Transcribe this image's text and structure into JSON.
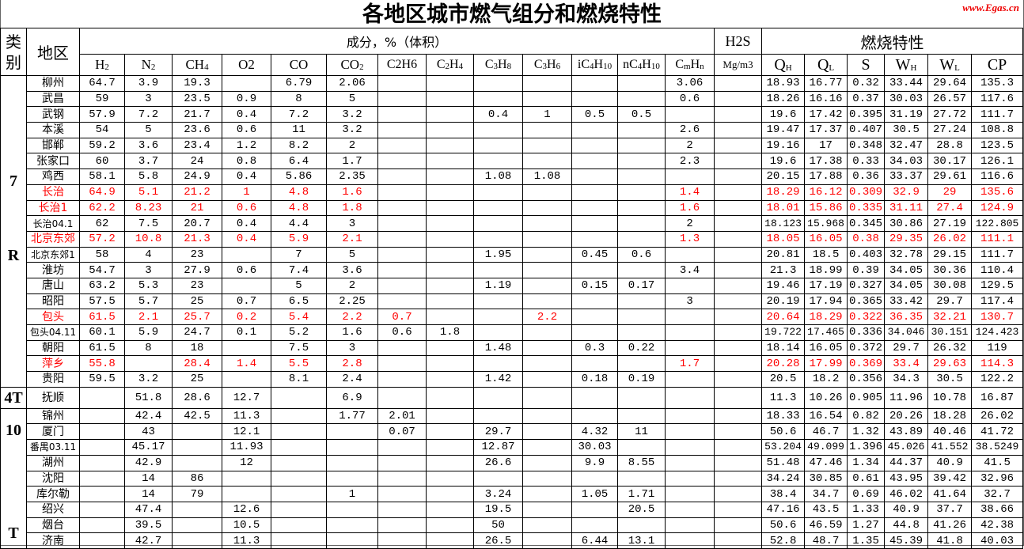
{
  "title": "各地区城市燃气组分和燃烧特性",
  "watermark": "www.Egas.cn",
  "header": {
    "category": "类别",
    "region": "地区",
    "composition": "成分，%（体积）",
    "h2s": "H2S",
    "h2s_unit": "Mg/m3",
    "combustion": "燃烧特性",
    "columns": [
      {
        "main": "H",
        "sub": "2"
      },
      {
        "main": "N",
        "sub": "2"
      },
      {
        "main": "CH",
        "sub": "4"
      },
      {
        "main": "O2",
        "sub": ""
      },
      {
        "main": "CO",
        "sub": ""
      },
      {
        "main": "CO",
        "sub": "2"
      },
      {
        "main": "C2H6",
        "sub": ""
      },
      {
        "main": "C",
        "sub": "2",
        "main2": "H",
        "sub2": "4"
      },
      {
        "main": "C",
        "sub": "3",
        "main2": "H",
        "sub2": "8"
      },
      {
        "main": "C",
        "sub": "3",
        "main2": "H",
        "sub2": "6"
      },
      {
        "main": "iC",
        "sub": "4",
        "main2": "H",
        "sub2": "10"
      },
      {
        "main": "nC",
        "sub": "4",
        "main2": "H",
        "sub2": "10"
      },
      {
        "main": "C",
        "sub": "m",
        "main2": "H",
        "sub2": "n"
      }
    ],
    "combustion_columns": [
      {
        "main": "Q",
        "sub": "H"
      },
      {
        "main": "Q",
        "sub": "L"
      },
      {
        "main": "S",
        "sub": ""
      },
      {
        "main": "W",
        "sub": "H"
      },
      {
        "main": "W",
        "sub": "L"
      },
      {
        "main": "CP",
        "sub": ""
      }
    ]
  },
  "colors": {
    "highlight": "#ff0000",
    "watermark": "#e00000"
  },
  "categories": [
    {
      "lines": [
        "7",
        "R"
      ],
      "rows": 20
    },
    {
      "lines": [
        "4T"
      ],
      "rows": 1
    },
    {
      "lines": [
        "10",
        "T"
      ],
      "rows": 9
    }
  ],
  "rows": [
    {
      "region": "柳州",
      "red": false,
      "values": [
        "64.7",
        "3.9",
        "19.3",
        "",
        "6.79",
        "2.06",
        "",
        "",
        "",
        "",
        "",
        "",
        "3.06",
        "",
        "18.93",
        "16.77",
        "0.32",
        "33.44",
        "29.64",
        "135.3"
      ]
    },
    {
      "region": "武昌",
      "red": false,
      "values": [
        "59",
        "3",
        "23.5",
        "0.9",
        "8",
        "5",
        "",
        "",
        "",
        "",
        "",
        "",
        "0.6",
        "",
        "18.26",
        "16.16",
        "0.37",
        "30.03",
        "26.57",
        "117.6"
      ]
    },
    {
      "region": "武钢",
      "red": false,
      "values": [
        "57.9",
        "7.2",
        "21.7",
        "0.4",
        "7.2",
        "3.2",
        "",
        "",
        "0.4",
        "1",
        "0.5",
        "0.5",
        "",
        "",
        "19.6",
        "17.42",
        "0.395",
        "31.19",
        "27.72",
        "111.7"
      ]
    },
    {
      "region": "本溪",
      "red": false,
      "values": [
        "54",
        "5",
        "23.6",
        "0.6",
        "11",
        "3.2",
        "",
        "",
        "",
        "",
        "",
        "",
        "2.6",
        "",
        "19.47",
        "17.37",
        "0.407",
        "30.5",
        "27.24",
        "108.8"
      ]
    },
    {
      "region": "邯郸",
      "red": false,
      "values": [
        "59.2",
        "3.6",
        "23.4",
        "1.2",
        "8.2",
        "2",
        "",
        "",
        "",
        "",
        "",
        "",
        "2",
        "",
        "19.16",
        "17",
        "0.348",
        "32.47",
        "28.8",
        "123.5"
      ]
    },
    {
      "region": "张家口",
      "red": false,
      "values": [
        "60",
        "3.7",
        "24",
        "0.8",
        "6.4",
        "1.7",
        "",
        "",
        "",
        "",
        "",
        "",
        "2.3",
        "",
        "19.6",
        "17.38",
        "0.33",
        "34.03",
        "30.17",
        "126.1"
      ]
    },
    {
      "region": "鸡西",
      "red": false,
      "values": [
        "58.1",
        "5.8",
        "24.9",
        "0.4",
        "5.86",
        "2.35",
        "",
        "",
        "1.08",
        "1.08",
        "",
        "",
        "",
        "",
        "20.15",
        "17.88",
        "0.36",
        "33.37",
        "29.61",
        "116.6"
      ]
    },
    {
      "region": "长治",
      "red": true,
      "values": [
        "64.9",
        "5.1",
        "21.2",
        "1",
        "4.8",
        "1.6",
        "",
        "",
        "",
        "",
        "",
        "",
        "1.4",
        "",
        "18.29",
        "16.12",
        "0.309",
        "32.9",
        "29",
        "135.6"
      ]
    },
    {
      "region": "长治1",
      "red": true,
      "values": [
        "62.2",
        "8.23",
        "21",
        "0.6",
        "4.8",
        "1.8",
        "",
        "",
        "",
        "",
        "",
        "",
        "1.6",
        "",
        "18.01",
        "15.86",
        "0.335",
        "31.11",
        "27.4",
        "124.9"
      ]
    },
    {
      "region": "长治04.1",
      "red": false,
      "values": [
        "62",
        "7.5",
        "20.7",
        "0.4",
        "4.4",
        "3",
        "",
        "",
        "",
        "",
        "",
        "",
        "2",
        "",
        "18.123",
        "15.968",
        "0.345",
        "30.86",
        "27.19",
        "122.805"
      ]
    },
    {
      "region": "北京东郊",
      "red": true,
      "values": [
        "57.2",
        "10.8",
        "21.3",
        "0.4",
        "5.9",
        "2.1",
        "",
        "",
        "",
        "",
        "",
        "",
        "1.3",
        "",
        "18.05",
        "16.05",
        "0.38",
        "29.35",
        "26.02",
        "111.1"
      ]
    },
    {
      "region": "北京东郊1",
      "red": false,
      "values": [
        "58",
        "4",
        "23",
        "",
        "7",
        "5",
        "",
        "",
        "1.95",
        "",
        "0.45",
        "0.6",
        "",
        "",
        "20.81",
        "18.5",
        "0.403",
        "32.78",
        "29.15",
        "111.7"
      ]
    },
    {
      "region": "淮坊",
      "red": false,
      "values": [
        "54.7",
        "3",
        "27.9",
        "0.6",
        "7.4",
        "3.6",
        "",
        "",
        "",
        "",
        "",
        "",
        "3.4",
        "",
        "21.3",
        "18.99",
        "0.39",
        "34.05",
        "30.36",
        "110.4"
      ]
    },
    {
      "region": "唐山",
      "red": false,
      "values": [
        "63.2",
        "5.3",
        "23",
        "",
        "5",
        "2",
        "",
        "",
        "1.19",
        "",
        "0.15",
        "0.17",
        "",
        "",
        "19.46",
        "17.19",
        "0.327",
        "34.05",
        "30.08",
        "129.5"
      ]
    },
    {
      "region": "昭阳",
      "red": false,
      "values": [
        "57.5",
        "5.7",
        "25",
        "0.7",
        "6.5",
        "2.25",
        "",
        "",
        "",
        "",
        "",
        "",
        "3",
        "",
        "20.19",
        "17.94",
        "0.365",
        "33.42",
        "29.7",
        "117.4"
      ]
    },
    {
      "region": "包头",
      "red": true,
      "values": [
        "61.5",
        "2.1",
        "25.7",
        "0.2",
        "5.4",
        "2.2",
        "0.7",
        "",
        "",
        "2.2",
        "",
        "",
        "",
        "",
        "20.64",
        "18.29",
        "0.322",
        "36.35",
        "32.21",
        "130.7"
      ]
    },
    {
      "region": "包头04.11",
      "red": false,
      "values": [
        "60.1",
        "5.9",
        "24.7",
        "0.1",
        "5.2",
        "1.6",
        "0.6",
        "1.8",
        "",
        "",
        "",
        "",
        "",
        "",
        "19.722",
        "17.465",
        "0.336",
        "34.046",
        "30.151",
        "124.423"
      ]
    },
    {
      "region": "朝阳",
      "red": false,
      "values": [
        "61.5",
        "8",
        "18",
        "",
        "7.5",
        "3",
        "",
        "",
        "1.48",
        "",
        "0.3",
        "0.22",
        "",
        "",
        "18.14",
        "16.05",
        "0.372",
        "29.7",
        "26.32",
        "119"
      ]
    },
    {
      "region": "萍乡",
      "red": true,
      "values": [
        "55.8",
        "",
        "28.4",
        "1.4",
        "5.5",
        "2.8",
        "",
        "",
        "",
        "",
        "",
        "",
        "1.7",
        "",
        "20.28",
        "17.99",
        "0.369",
        "33.4",
        "29.63",
        "114.3"
      ]
    },
    {
      "region": "贵阳",
      "red": false,
      "values": [
        "59.5",
        "3.2",
        "25",
        "",
        "8.1",
        "2.4",
        "",
        "",
        "1.42",
        "",
        "0.18",
        "0.19",
        "",
        "",
        "20.5",
        "18.2",
        "0.356",
        "34.3",
        "30.5",
        "122.2"
      ]
    },
    {
      "region": "抚顺",
      "red": false,
      "values": [
        "",
        "51.8",
        "28.6",
        "12.7",
        "",
        "6.9",
        "",
        "",
        "",
        "",
        "",
        "",
        "",
        "",
        "11.3",
        "10.26",
        "0.905",
        "11.96",
        "10.78",
        "16.87"
      ]
    },
    {
      "region": "锦州",
      "red": false,
      "values": [
        "",
        "42.4",
        "42.5",
        "11.3",
        "",
        "1.77",
        "2.01",
        "",
        "",
        "",
        "",
        "",
        "",
        "",
        "18.33",
        "16.54",
        "0.82",
        "20.26",
        "18.28",
        "26.02"
      ]
    },
    {
      "region": "厦门",
      "red": false,
      "values": [
        "",
        "43",
        "",
        "12.1",
        "",
        "",
        "0.07",
        "",
        "29.7",
        "",
        "4.32",
        "11",
        "",
        "",
        "50.6",
        "46.7",
        "1.32",
        "43.89",
        "40.46",
        "41.72"
      ]
    },
    {
      "region": "番禺03.11",
      "red": false,
      "values": [
        "",
        "45.17",
        "",
        "11.93",
        "",
        "",
        "",
        "",
        "12.87",
        "",
        "30.03",
        "",
        "",
        "",
        "53.204",
        "49.099",
        "1.396",
        "45.026",
        "41.552",
        "38.5249"
      ]
    },
    {
      "region": "湖州",
      "red": false,
      "values": [
        "",
        "42.9",
        "",
        "12",
        "",
        "",
        "",
        "",
        "26.6",
        "",
        "9.9",
        "8.55",
        "",
        "",
        "51.48",
        "47.46",
        "1.34",
        "44.37",
        "40.9",
        "41.5"
      ]
    },
    {
      "region": "沈阳",
      "red": false,
      "values": [
        "",
        "14",
        "86",
        "",
        "",
        "",
        "",
        "",
        "",
        "",
        "",
        "",
        "",
        "",
        "34.24",
        "30.85",
        "0.61",
        "43.95",
        "39.42",
        "32.96"
      ]
    },
    {
      "region": "库尔勒",
      "red": false,
      "values": [
        "",
        "14",
        "79",
        "",
        "",
        "1",
        "",
        "",
        "3.24",
        "",
        "1.05",
        "1.71",
        "",
        "",
        "38.4",
        "34.7",
        "0.69",
        "46.02",
        "41.64",
        "32.7"
      ]
    },
    {
      "region": "绍兴",
      "red": false,
      "values": [
        "",
        "47.4",
        "",
        "12.6",
        "",
        "",
        "",
        "",
        "19.5",
        "",
        "",
        "20.5",
        "",
        "",
        "47.16",
        "43.5",
        "1.33",
        "40.9",
        "37.7",
        "38.66"
      ]
    },
    {
      "region": "烟台",
      "red": false,
      "values": [
        "",
        "39.5",
        "",
        "10.5",
        "",
        "",
        "",
        "",
        "50",
        "",
        "",
        "",
        "",
        "",
        "50.6",
        "46.59",
        "1.27",
        "44.8",
        "41.26",
        "42.38"
      ]
    },
    {
      "region": "济南",
      "red": false,
      "values": [
        "",
        "42.7",
        "",
        "11.3",
        "",
        "",
        "",
        "",
        "26.5",
        "",
        "6.44",
        "13.1",
        "",
        "",
        "52.8",
        "48.7",
        "1.35",
        "45.39",
        "41.8",
        "40.03"
      ]
    }
  ]
}
